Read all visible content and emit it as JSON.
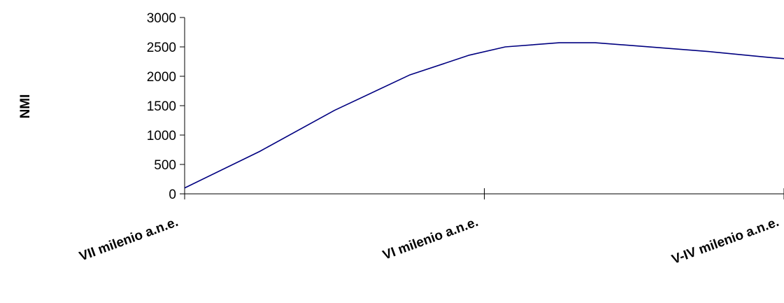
{
  "chart_data": {
    "type": "line",
    "title": "",
    "xlabel": "",
    "ylabel": "NMI",
    "ylim": [
      0,
      3000
    ],
    "y_ticks": [
      0,
      500,
      1000,
      1500,
      2000,
      2500,
      3000
    ],
    "x_range": [
      0,
      2
    ],
    "x_tick_positions": [
      0,
      1,
      2
    ],
    "categories": [
      "VII milenio a.n.e.",
      "VI milenio a.n.e.",
      "V-IV milenio a.n.e."
    ],
    "grid": false,
    "legend": "none",
    "series": [
      {
        "color": "#000080",
        "x": [
          0,
          0.25,
          0.5,
          0.75,
          0.95,
          1.07,
          1.25,
          1.37,
          1.5,
          1.75,
          1.95,
          2.0
        ],
        "y": [
          100,
          720,
          1420,
          2020,
          2360,
          2500,
          2570,
          2570,
          2520,
          2420,
          2320,
          2300
        ]
      }
    ]
  }
}
